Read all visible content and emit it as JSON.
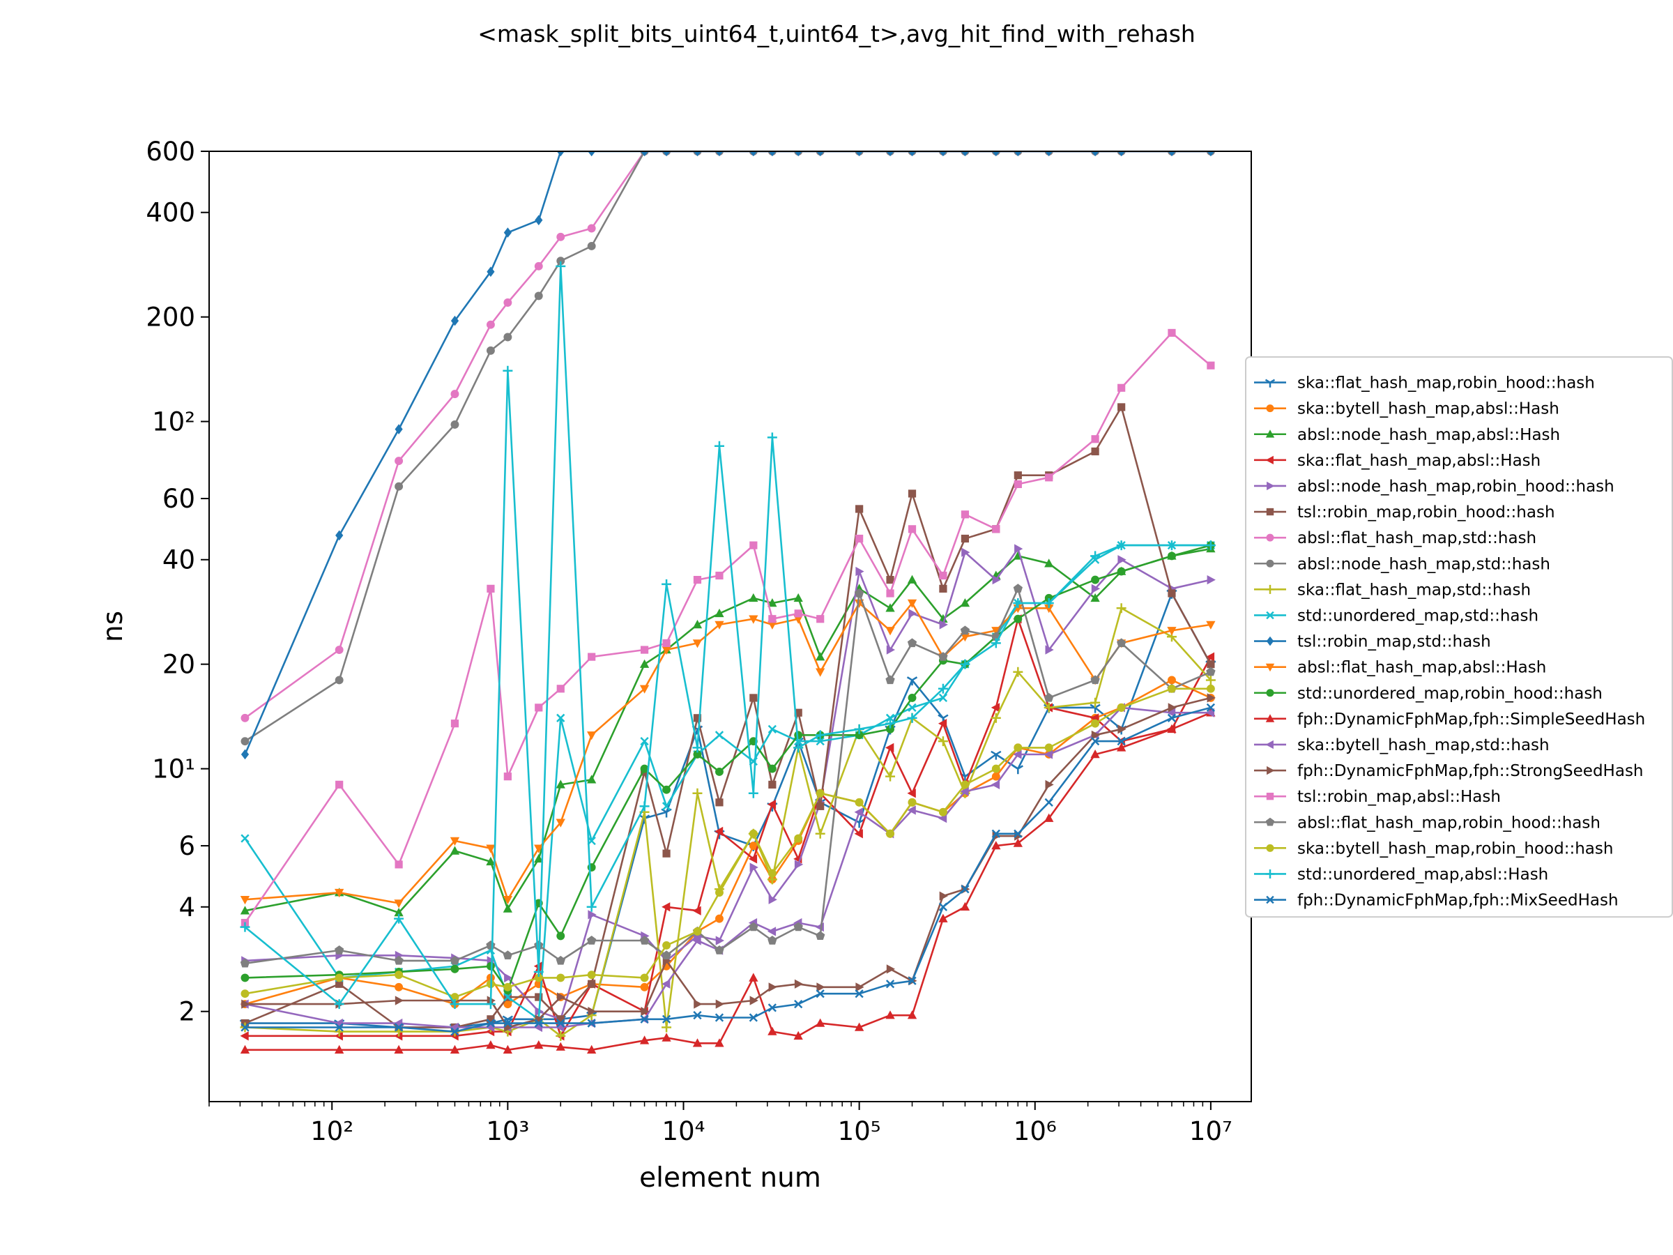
{
  "chart_data": {
    "type": "line",
    "title": "<mask_split_bits_uint64_t,uint64_t>,avg_hit_find_with_rehash",
    "xlabel": "element num",
    "ylabel": "ns",
    "xscale": "log",
    "yscale": "log",
    "xlim": [
      20,
      17000000
    ],
    "ylim": [
      1.1,
      600
    ],
    "x_ticks": [
      {
        "value": 100,
        "label": "10²"
      },
      {
        "value": 1000,
        "label": "10³"
      },
      {
        "value": 10000,
        "label": "10⁴"
      },
      {
        "value": 100000,
        "label": "10⁵"
      },
      {
        "value": 1000000,
        "label": "10⁶"
      },
      {
        "value": 10000000,
        "label": "10⁷"
      }
    ],
    "y_ticks": [
      {
        "value": 2,
        "label": "2"
      },
      {
        "value": 4,
        "label": "4"
      },
      {
        "value": 6,
        "label": "6"
      },
      {
        "value": 10,
        "label": "10¹"
      },
      {
        "value": 20,
        "label": "20"
      },
      {
        "value": 40,
        "label": "40"
      },
      {
        "value": 60,
        "label": "60"
      },
      {
        "value": 100,
        "label": "10²"
      },
      {
        "value": 200,
        "label": "200"
      },
      {
        "value": 400,
        "label": "400"
      },
      {
        "value": 600,
        "label": "600"
      }
    ],
    "grid": false,
    "legend_position": "center-right outside",
    "x": [
      32,
      110,
      240,
      500,
      800,
      1000,
      1500,
      2000,
      3000,
      6000,
      8000,
      12000,
      16000,
      25000,
      32000,
      45000,
      60000,
      100000,
      150000,
      200000,
      300000,
      400000,
      600000,
      800000,
      1200000,
      2200000,
      3100000,
      6000000,
      10000000
    ],
    "series": [
      {
        "name": "ska::flat_hash_map,robin_hood::hash",
        "color": "#1f77b4",
        "marker": "tri_down",
        "values": [
          1.85,
          1.85,
          1.8,
          1.8,
          1.85,
          1.9,
          1.9,
          1.9,
          1.95,
          7.2,
          7.5,
          13,
          6.5,
          6.0,
          7.8,
          12,
          8,
          7,
          13,
          18,
          14,
          9.5,
          11,
          10,
          15,
          15,
          13,
          32,
          20
        ]
      },
      {
        "name": "ska::bytell_hash_map,absl::Hash",
        "color": "#ff7f0e",
        "marker": "o",
        "values": [
          2.1,
          2.5,
          2.35,
          2.1,
          2.5,
          2.1,
          2.4,
          2.2,
          2.4,
          2.35,
          2.7,
          3.4,
          3.7,
          6.0,
          4.8,
          6.2,
          8.5,
          8.0,
          6.5,
          8.0,
          7.5,
          8.5,
          9.5,
          11.5,
          11,
          14,
          15,
          18,
          16
        ]
      },
      {
        "name": "absl::node_hash_map,absl::Hash",
        "color": "#2ca02c",
        "marker": "^",
        "values": [
          3.9,
          4.4,
          3.85,
          5.8,
          5.4,
          3.95,
          5.5,
          9.0,
          9.3,
          20,
          22,
          26,
          28,
          31,
          30,
          31,
          21,
          33,
          29,
          35,
          27,
          30,
          36,
          41,
          39,
          31,
          37,
          41,
          43
        ]
      },
      {
        "name": "ska::flat_hash_map,absl::Hash",
        "color": "#d62728",
        "marker": "<",
        "values": [
          1.7,
          1.7,
          1.7,
          1.7,
          1.75,
          1.75,
          2.7,
          1.7,
          2.4,
          2.0,
          4.0,
          3.9,
          6.6,
          5.5,
          7.9,
          5.5,
          8.5,
          6.5,
          11.5,
          8.5,
          13.5,
          9.0,
          15,
          27,
          15,
          14,
          12,
          13,
          21
        ]
      },
      {
        "name": "absl::node_hash_map,robin_hood::hash",
        "color": "#9467bd",
        "marker": ">",
        "values": [
          2.8,
          2.9,
          2.9,
          2.85,
          2.8,
          2.5,
          2.0,
          1.9,
          3.8,
          3.3,
          2.8,
          3.3,
          3.2,
          5.2,
          4.2,
          5.3,
          8.0,
          37,
          22,
          28,
          26,
          42,
          35,
          43,
          22,
          33,
          40,
          33,
          35
        ]
      },
      {
        "name": "tsl::robin_map,robin_hood::hash",
        "color": "#8c564b",
        "marker": "s",
        "values": [
          1.85,
          2.4,
          1.8,
          1.8,
          1.9,
          2.2,
          2.2,
          1.9,
          2.4,
          9.8,
          5.7,
          14,
          8.0,
          16,
          9.0,
          14.5,
          7.8,
          56,
          35,
          62,
          33,
          46,
          49,
          70,
          70,
          82,
          110,
          32,
          20
        ]
      },
      {
        "name": "absl::flat_hash_map,std::hash",
        "color": "#e377c2",
        "marker": "o",
        "values": [
          14,
          22,
          77,
          120,
          190,
          220,
          280,
          340,
          360,
          600,
          600,
          600,
          600,
          600,
          600,
          600,
          600,
          600,
          600,
          600,
          600,
          600,
          600,
          600,
          600,
          600,
          600,
          600,
          600
        ]
      },
      {
        "name": "absl::node_hash_map,std::hash",
        "color": "#7f7f7f",
        "marker": "o",
        "values": [
          12,
          18,
          65,
          98,
          160,
          175,
          230,
          290,
          320,
          600,
          600,
          600,
          600,
          600,
          600,
          600,
          600,
          600,
          600,
          600,
          600,
          600,
          600,
          600,
          600,
          600,
          600,
          600,
          600
        ]
      },
      {
        "name": "ska::flat_hash_map,std::hash",
        "color": "#bcbd22",
        "marker": "+",
        "values": [
          1.8,
          1.75,
          1.75,
          1.75,
          1.8,
          1.75,
          1.9,
          1.7,
          1.95,
          7.5,
          1.8,
          8.5,
          4.5,
          6.5,
          4.8,
          11.5,
          6.5,
          13,
          9.5,
          14,
          12,
          8.5,
          14,
          19,
          15,
          15.5,
          29,
          24,
          18
        ]
      },
      {
        "name": "std::unordered_map,std::hash",
        "color": "#17becf",
        "marker": "x",
        "values": [
          6.3,
          2.5,
          2.6,
          2.7,
          3.0,
          2.2,
          1.9,
          14,
          6.2,
          12,
          7.8,
          11,
          12.5,
          10.5,
          13,
          12,
          12,
          12.5,
          14,
          15,
          16,
          20,
          24,
          30,
          30,
          40,
          44,
          44,
          44
        ]
      },
      {
        "name": "tsl::robin_map,std::hash",
        "color": "#1f77b4",
        "marker": "D",
        "values": [
          11,
          47,
          95,
          195,
          270,
          350,
          380,
          600,
          600,
          600,
          600,
          600,
          600,
          600,
          600,
          600,
          600,
          600,
          600,
          600,
          600,
          600,
          600,
          600,
          600,
          600,
          600,
          600,
          600
        ]
      },
      {
        "name": "absl::flat_hash_map,absl::Hash",
        "color": "#ff7f0e",
        "marker": "v",
        "values": [
          4.2,
          4.4,
          4.1,
          6.2,
          5.9,
          4.2,
          5.9,
          7.0,
          12.5,
          17,
          22,
          23,
          26,
          27,
          26,
          27,
          19,
          30,
          25,
          30,
          21,
          24,
          25,
          29,
          29,
          18,
          23,
          25,
          26
        ]
      },
      {
        "name": "std::unordered_map,robin_hood::hash",
        "color": "#2ca02c",
        "marker": "o",
        "values": [
          2.5,
          2.55,
          2.6,
          2.65,
          2.7,
          2.3,
          4.1,
          3.3,
          5.2,
          10,
          8.7,
          11,
          9.8,
          12,
          10,
          12.5,
          12.5,
          12.5,
          13,
          16,
          20.5,
          20,
          24,
          27,
          31,
          35,
          37,
          41,
          44
        ]
      },
      {
        "name": "fph::DynamicFphMap,fph::SimpleSeedHash",
        "color": "#d62728",
        "marker": "^",
        "values": [
          1.55,
          1.55,
          1.55,
          1.55,
          1.6,
          1.55,
          1.6,
          1.58,
          1.55,
          1.65,
          1.68,
          1.62,
          1.62,
          2.5,
          1.75,
          1.7,
          1.85,
          1.8,
          1.95,
          1.95,
          3.7,
          4.0,
          6.0,
          6.1,
          7.2,
          11,
          11.5,
          13,
          14.5
        ]
      },
      {
        "name": "ska::bytell_hash_map,std::hash",
        "color": "#9467bd",
        "marker": "<",
        "values": [
          2.1,
          1.85,
          1.85,
          1.8,
          1.8,
          1.8,
          1.8,
          1.8,
          1.85,
          1.9,
          2.4,
          3.2,
          3.0,
          3.6,
          3.4,
          3.6,
          3.5,
          7.5,
          6.5,
          7.6,
          7.2,
          8.6,
          9.0,
          11,
          11,
          12.5,
          15,
          14.5,
          14.5
        ]
      },
      {
        "name": "fph::DynamicFphMap,fph::StrongSeedHash",
        "color": "#8c564b",
        "marker": ">",
        "values": [
          2.1,
          2.1,
          2.15,
          2.15,
          2.15,
          1.8,
          1.9,
          2.2,
          2.0,
          2.0,
          2.8,
          2.1,
          2.1,
          2.15,
          2.35,
          2.4,
          2.35,
          2.35,
          2.65,
          2.45,
          4.3,
          4.5,
          6.4,
          6.4,
          9.0,
          12.5,
          13,
          15,
          16
        ]
      },
      {
        "name": "tsl::robin_map,absl::Hash",
        "color": "#e377c2",
        "marker": "s",
        "values": [
          3.6,
          9.0,
          5.3,
          13.5,
          33,
          9.5,
          15,
          17,
          21,
          22,
          23,
          35,
          36,
          44,
          27,
          28,
          27,
          46,
          32,
          49,
          36,
          54,
          49,
          66,
          69,
          89,
          125,
          180,
          145
        ]
      },
      {
        "name": "absl::flat_hash_map,robin_hood::hash",
        "color": "#7f7f7f",
        "marker": "p",
        "values": [
          2.75,
          3.0,
          2.8,
          2.8,
          3.1,
          2.9,
          3.1,
          2.8,
          3.2,
          3.2,
          2.9,
          3.4,
          3.0,
          3.5,
          3.2,
          3.5,
          3.3,
          32,
          18,
          23,
          21,
          25,
          24,
          33,
          16,
          18,
          23,
          17,
          19
        ]
      },
      {
        "name": "ska::bytell_hash_map,robin_hood::hash",
        "color": "#bcbd22",
        "marker": "o",
        "values": [
          2.25,
          2.5,
          2.55,
          2.2,
          2.4,
          2.35,
          2.5,
          2.5,
          2.55,
          2.5,
          3.1,
          3.4,
          4.4,
          6.5,
          5.0,
          6.3,
          8.5,
          8.0,
          6.5,
          8.0,
          7.5,
          9.0,
          10,
          11.5,
          11.5,
          13.5,
          15,
          17,
          17
        ]
      },
      {
        "name": "std::unordered_map,absl::Hash",
        "color": "#17becf",
        "marker": "+",
        "values": [
          3.5,
          2.1,
          3.7,
          2.1,
          2.1,
          140,
          2.6,
          280,
          4.0,
          7.8,
          34,
          11.5,
          85,
          8.5,
          90,
          11.5,
          12.5,
          13,
          13.5,
          14,
          17,
          20,
          23,
          30,
          30,
          41,
          44,
          44,
          44
        ]
      },
      {
        "name": "fph::DynamicFphMap,fph::MixSeedHash",
        "color": "#1f77b4",
        "marker": "x",
        "values": [
          1.8,
          1.8,
          1.8,
          1.75,
          1.85,
          1.85,
          1.85,
          1.85,
          1.85,
          1.9,
          1.9,
          1.95,
          1.92,
          1.92,
          2.05,
          2.1,
          2.25,
          2.25,
          2.4,
          2.45,
          4.0,
          4.5,
          6.5,
          6.5,
          8.0,
          12,
          12,
          14,
          15
        ]
      }
    ]
  }
}
